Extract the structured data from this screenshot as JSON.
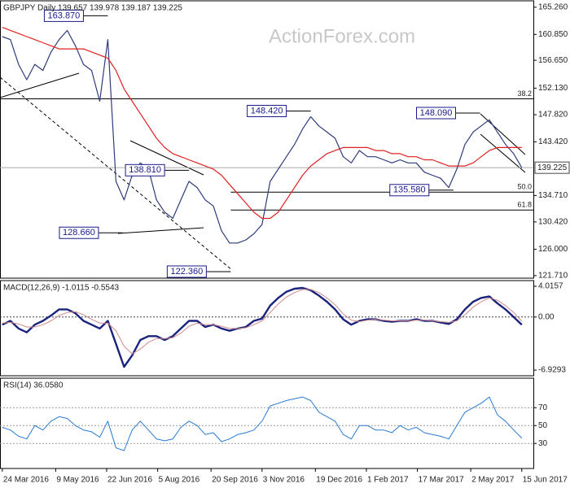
{
  "chart_data": [
    {
      "type": "line",
      "title": "GBPJPY Daily  139.657 139.978 139.187 139.225",
      "watermark": "ActionForex.com",
      "x": [
        "2016-03-24",
        "2016-03-31",
        "2016-04-07",
        "2016-04-14",
        "2016-04-21",
        "2016-04-28",
        "2016-05-05",
        "2016-05-12",
        "2016-05-19",
        "2016-05-26",
        "2016-06-02",
        "2016-06-09",
        "2016-06-16",
        "2016-06-23",
        "2016-06-30",
        "2016-07-07",
        "2016-07-14",
        "2016-07-21",
        "2016-07-28",
        "2016-08-04",
        "2016-08-11",
        "2016-08-18",
        "2016-08-25",
        "2016-09-01",
        "2016-09-08",
        "2016-09-15",
        "2016-09-22",
        "2016-09-29",
        "2016-10-06",
        "2016-10-13",
        "2016-10-20",
        "2016-10-27",
        "2016-11-03",
        "2016-11-10",
        "2016-11-17",
        "2016-11-24",
        "2016-12-01",
        "2016-12-08",
        "2016-12-15",
        "2016-12-22",
        "2016-12-29",
        "2017-01-05",
        "2017-01-12",
        "2017-01-19",
        "2017-01-26",
        "2017-02-02",
        "2017-02-09",
        "2017-02-16",
        "2017-02-23",
        "2017-03-02",
        "2017-03-09",
        "2017-03-16",
        "2017-03-23",
        "2017-03-30",
        "2017-04-06",
        "2017-04-13",
        "2017-04-20",
        "2017-04-27",
        "2017-05-04",
        "2017-05-11",
        "2017-05-18",
        "2017-05-25",
        "2017-06-01",
        "2017-06-08",
        "2017-06-15"
      ],
      "xlim": [
        "2016-03-22",
        "2017-06-25"
      ],
      "xticks": [
        {
          "value": "2016-03-24",
          "label": "24 Mar 2016"
        },
        {
          "value": "2016-05-09",
          "label": "9 May 2016"
        },
        {
          "value": "2016-06-22",
          "label": "22 Jun 2016"
        },
        {
          "value": "2016-08-05",
          "label": "5 Aug 2016"
        },
        {
          "value": "2016-09-20",
          "label": "20 Sep 2016"
        },
        {
          "value": "2016-11-03",
          "label": "3 Nov 2016"
        },
        {
          "value": "2016-12-19",
          "label": "19 Dec 2016"
        },
        {
          "value": "2017-02-01",
          "label": "1 Feb 2017"
        },
        {
          "value": "2017-03-17",
          "label": "17 Mar 2017"
        },
        {
          "value": "2017-05-02",
          "label": "2 May 2017"
        },
        {
          "value": "2017-06-15",
          "label": "15 Jun 2017"
        }
      ],
      "ylim": [
        121.3,
        166.3
      ],
      "yticks": [
        {
          "value": 165.26,
          "label": "165.260"
        },
        {
          "value": 160.85,
          "label": "160.850"
        },
        {
          "value": 156.65,
          "label": "156.650"
        },
        {
          "value": 152.13,
          "label": "152.130"
        },
        {
          "value": 147.82,
          "label": "147.820"
        },
        {
          "value": 143.42,
          "label": "143.420"
        },
        {
          "value": 134.71,
          "label": "134.710"
        },
        {
          "value": 130.42,
          "label": "130.420"
        },
        {
          "value": 126,
          "label": "126.000"
        },
        {
          "value": 121.71,
          "label": "121.710"
        }
      ],
      "last": {
        "value": 139.225,
        "label": "139.225"
      },
      "levels": [
        {
          "label": "38.2",
          "value": 150.39
        },
        {
          "label": "50.0",
          "value": 135.26,
          "from": "2016-10-07"
        },
        {
          "label": "61.8",
          "value": 132.36,
          "from": "2016-10-07"
        }
      ],
      "annotations": [
        {
          "label": "163.870",
          "value": 163.87,
          "x": "2016-06-23"
        },
        {
          "label": "148.420",
          "value": 148.42,
          "x": "2016-12-15"
        },
        {
          "label": "148.090",
          "value": 148.09,
          "x": "2017-05-10"
        },
        {
          "label": "138.810",
          "value": 138.81,
          "x": "2016-09-01"
        },
        {
          "label": "128.660",
          "value": 128.66,
          "x": "2016-07-06"
        },
        {
          "label": "135.580",
          "value": 135.58,
          "x": "2017-04-17"
        },
        {
          "label": "122.360",
          "value": 122.36,
          "x": "2016-10-07"
        }
      ],
      "series": [
        {
          "color": "#2f3b7a",
          "width": 1.2,
          "values": [
            160.5,
            160,
            156,
            153.5,
            156,
            155,
            158,
            160,
            161.5,
            159,
            156,
            155,
            150,
            160,
            137,
            134,
            138,
            140,
            139,
            134,
            132,
            131,
            134,
            137,
            136,
            134,
            133,
            129,
            127,
            127,
            127.5,
            128.5,
            130,
            137,
            139,
            141,
            143,
            145.5,
            147.5,
            146,
            145,
            144,
            141,
            140,
            142,
            141,
            141,
            140.5,
            140,
            140.5,
            140,
            140,
            138.5,
            138,
            137.5,
            136,
            139,
            143,
            145,
            146,
            147,
            145,
            143,
            141.5,
            139.225
          ]
        },
        {
          "color": "#e02020",
          "width": 1.2,
          "values": [
            162,
            161.5,
            161,
            160.5,
            160,
            159.5,
            159,
            158.5,
            158.5,
            158.5,
            158.5,
            158,
            157.5,
            157,
            155,
            152,
            150,
            148,
            146,
            144,
            142.5,
            141.5,
            141,
            140.5,
            140,
            139.5,
            139,
            138,
            136.5,
            135,
            133.5,
            132,
            131,
            131,
            132,
            134,
            136,
            138,
            139.5,
            140.5,
            141.5,
            142,
            142.5,
            142.5,
            142.5,
            142.5,
            142,
            142,
            141.5,
            141.5,
            141,
            141,
            140.5,
            140.5,
            140,
            139.5,
            139.5,
            139.5,
            140,
            141,
            142,
            142.5,
            142.5,
            142.5,
            142.5
          ]
        }
      ]
    },
    {
      "type": "line",
      "title": "MACD(12,26,9) -1.0115 -0.5543",
      "ylim": [
        -7.67,
        4.76
      ],
      "yticks": [
        4.0157,
        {
          "value": 0,
          "label": "0.00"
        },
        -6.9293
      ],
      "zero_line": true,
      "series": [
        {
          "color": "#1a237e",
          "width": 2.4,
          "values": [
            -1,
            -0.5,
            -1.5,
            -2,
            -1,
            -0.5,
            0.2,
            1,
            1,
            0.5,
            -0.5,
            -1,
            -1.5,
            -0.5,
            -3.5,
            -6.5,
            -5,
            -3,
            -2.5,
            -2.5,
            -3,
            -2.5,
            -1.5,
            -0.5,
            -0.5,
            -1.3,
            -1,
            -1.5,
            -1.8,
            -1.5,
            -1.3,
            -0.5,
            -0.2,
            1.5,
            2.5,
            3.3,
            3.7,
            3.8,
            3.5,
            2.8,
            2,
            1,
            -0.3,
            -1,
            -0.5,
            -0.3,
            -0.3,
            -0.5,
            -0.6,
            -0.5,
            -0.5,
            -0.3,
            -0.5,
            -0.5,
            -0.7,
            -0.9,
            -0.3,
            1,
            2,
            2.5,
            2.7,
            1.8,
            1,
            0,
            -1.0115
          ]
        },
        {
          "color": "#d08a8a",
          "width": 1,
          "values": [
            -0.8,
            -0.7,
            -0.9,
            -1.3,
            -1.3,
            -1,
            -0.5,
            0.2,
            0.6,
            0.7,
            0.3,
            -0.3,
            -0.8,
            -0.8,
            -1.8,
            -3.8,
            -4.8,
            -4.2,
            -3.3,
            -2.8,
            -2.8,
            -2.7,
            -2.1,
            -1.2,
            -0.8,
            -1,
            -1,
            -1.2,
            -1.5,
            -1.5,
            -1.4,
            -1,
            -0.5,
            0.6,
            1.7,
            2.6,
            3.2,
            3.6,
            3.6,
            3.2,
            2.5,
            1.6,
            0.4,
            -0.4,
            -0.6,
            -0.4,
            -0.3,
            -0.4,
            -0.5,
            -0.5,
            -0.5,
            -0.4,
            -0.4,
            -0.5,
            -0.6,
            -0.7,
            -0.5,
            0.3,
            1.3,
            2,
            2.5,
            2.2,
            1.5,
            0.6,
            -0.5543
          ]
        }
      ]
    },
    {
      "type": "line",
      "title": "RSI(14) 36.0580",
      "ylim": [
        2,
        103
      ],
      "yticks": [
        70,
        50,
        30
      ],
      "grid": true,
      "series": [
        {
          "color": "#2a7ad0",
          "width": 1,
          "values": [
            48,
            45,
            38,
            35,
            50,
            45,
            55,
            60,
            58,
            50,
            45,
            43,
            37,
            55,
            25,
            22,
            45,
            55,
            45,
            35,
            33,
            35,
            48,
            55,
            50,
            40,
            42,
            32,
            35,
            40,
            42,
            45,
            55,
            72,
            75,
            78,
            80,
            82,
            78,
            65,
            60,
            55,
            40,
            35,
            50,
            50,
            45,
            45,
            42,
            50,
            45,
            48,
            42,
            40,
            38,
            35,
            50,
            65,
            70,
            75,
            82,
            62,
            55,
            45,
            36.058
          ]
        }
      ]
    }
  ]
}
